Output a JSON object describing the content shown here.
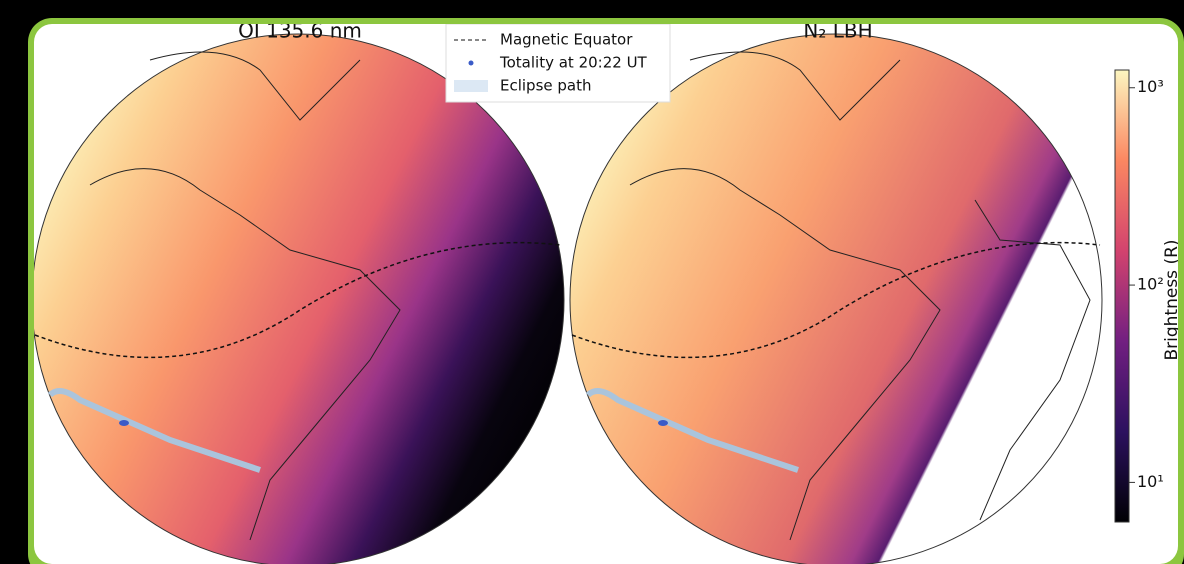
{
  "panels": [
    {
      "title": "OI 135.6 nm"
    },
    {
      "title": "N₂ LBH"
    }
  ],
  "legend": [
    {
      "label": "Magnetic Equator"
    },
    {
      "label": "Totality at 20:22 UT"
    },
    {
      "label": "Eclipse path"
    }
  ],
  "colorbar": {
    "label": "Brightness (R)",
    "scale": "log",
    "lim": [
      6.3,
      1230
    ],
    "ticks": [
      {
        "value": 10,
        "label": "10¹"
      },
      {
        "value": 100,
        "label": "10²"
      },
      {
        "value": 1000,
        "label": "10³"
      }
    ]
  }
}
